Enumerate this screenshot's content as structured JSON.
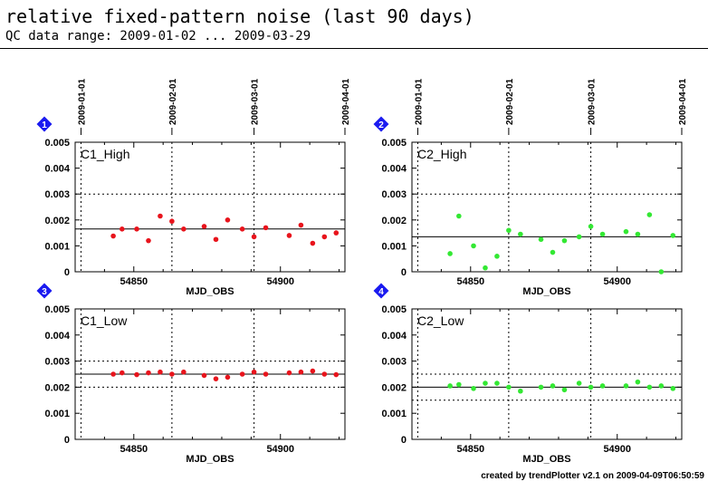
{
  "header": {
    "title": "relative fixed-pattern noise (last 90 days)",
    "subtitle": "QC data range: 2009-01-02 ... 2009-03-29"
  },
  "footer": "created by trendPlotter v2.1 on 2009-04-09T06:50:59",
  "colors": {
    "red": "#e8141c",
    "green": "#33e833",
    "badge": "#1a1af0"
  },
  "chart_data": [
    {
      "type": "scatter",
      "badge": "1",
      "panel_label": "C1_High",
      "xlabel": "MJD_OBS",
      "xlim": [
        54830,
        54922
      ],
      "ylim": [
        0,
        0.005
      ],
      "xticks": [
        54850,
        54900
      ],
      "yticks": [
        "0",
        "0.001",
        "0.002",
        "0.003",
        "0.004",
        "0.005"
      ],
      "date_ticks": [
        {
          "label": "2009-01-01",
          "mjd": 54832
        },
        {
          "label": "2009-02-01",
          "mjd": 54863
        },
        {
          "label": "2009-03-01",
          "mjd": 54891
        },
        {
          "label": "2009-04-01",
          "mjd": 54922
        }
      ],
      "show_xlabel": true,
      "color": "#e8141c",
      "reference_line": 0.00165,
      "threshold_lines": [
        0.003
      ],
      "points": [
        [
          54843,
          0.00138
        ],
        [
          54846,
          0.00165
        ],
        [
          54851,
          0.00165
        ],
        [
          54855,
          0.0012
        ],
        [
          54859,
          0.00215
        ],
        [
          54863,
          0.00195
        ],
        [
          54867,
          0.00165
        ],
        [
          54874,
          0.00175
        ],
        [
          54878,
          0.00125
        ],
        [
          54882,
          0.002
        ],
        [
          54887,
          0.00165
        ],
        [
          54891,
          0.00135
        ],
        [
          54895,
          0.0017
        ],
        [
          54903,
          0.0014
        ],
        [
          54907,
          0.0018
        ],
        [
          54911,
          0.0011
        ],
        [
          54915,
          0.00135
        ],
        [
          54919,
          0.0015
        ]
      ]
    },
    {
      "type": "scatter",
      "badge": "2",
      "panel_label": "C2_High",
      "xlabel": "MJD_OBS",
      "xlim": [
        54830,
        54922
      ],
      "ylim": [
        0,
        0.005
      ],
      "xticks": [
        54850,
        54900
      ],
      "yticks": [
        "0",
        "0.001",
        "0.002",
        "0.003",
        "0.004",
        "0.005"
      ],
      "date_ticks": [
        {
          "label": "2009-01-01",
          "mjd": 54832
        },
        {
          "label": "2009-02-01",
          "mjd": 54863
        },
        {
          "label": "2009-03-01",
          "mjd": 54891
        },
        {
          "label": "2009-04-01",
          "mjd": 54922
        }
      ],
      "show_xlabel": true,
      "color": "#33e833",
      "reference_line": 0.00135,
      "threshold_lines": [
        0.003
      ],
      "points": [
        [
          54843,
          0.0007
        ],
        [
          54846,
          0.00215
        ],
        [
          54851,
          0.001
        ],
        [
          54855,
          0.00015
        ],
        [
          54859,
          0.0006
        ],
        [
          54863,
          0.0016
        ],
        [
          54867,
          0.00145
        ],
        [
          54874,
          0.00125
        ],
        [
          54878,
          0.00075
        ],
        [
          54882,
          0.0012
        ],
        [
          54887,
          0.00135
        ],
        [
          54891,
          0.00175
        ],
        [
          54895,
          0.00145
        ],
        [
          54903,
          0.00155
        ],
        [
          54907,
          0.00145
        ],
        [
          54911,
          0.0022
        ],
        [
          54915,
          0.0
        ],
        [
          54919,
          0.0014
        ]
      ]
    },
    {
      "type": "scatter",
      "badge": "3",
      "panel_label": "C1_Low",
      "xlabel": "MJD_OBS",
      "xlim": [
        54830,
        54922
      ],
      "ylim": [
        0,
        0.005
      ],
      "xticks": [
        54850,
        54900
      ],
      "yticks": [
        "0",
        "0.001",
        "0.002",
        "0.003",
        "0.004",
        "0.005"
      ],
      "date_ticks": [
        {
          "label": "2009-01-01",
          "mjd": 54832
        },
        {
          "label": "2009-02-01",
          "mjd": 54863
        },
        {
          "label": "2009-03-01",
          "mjd": 54891
        },
        {
          "label": "2009-04-01",
          "mjd": 54922
        }
      ],
      "show_xlabel": true,
      "color": "#e8141c",
      "reference_line": 0.0025,
      "threshold_lines": [
        0.003,
        0.002
      ],
      "points": [
        [
          54843,
          0.0025
        ],
        [
          54846,
          0.00255
        ],
        [
          54851,
          0.00248
        ],
        [
          54855,
          0.00255
        ],
        [
          54859,
          0.00258
        ],
        [
          54863,
          0.0025
        ],
        [
          54867,
          0.00258
        ],
        [
          54874,
          0.00245
        ],
        [
          54878,
          0.00232
        ],
        [
          54882,
          0.00238
        ],
        [
          54887,
          0.0025
        ],
        [
          54891,
          0.00258
        ],
        [
          54895,
          0.0025
        ],
        [
          54903,
          0.00255
        ],
        [
          54907,
          0.00258
        ],
        [
          54911,
          0.00262
        ],
        [
          54915,
          0.0025
        ],
        [
          54919,
          0.00248
        ]
      ]
    },
    {
      "type": "scatter",
      "badge": "4",
      "panel_label": "C2_Low",
      "xlabel": "MJD_OBS",
      "xlim": [
        54830,
        54922
      ],
      "ylim": [
        0,
        0.005
      ],
      "xticks": [
        54850,
        54900
      ],
      "yticks": [
        "0",
        "0.001",
        "0.002",
        "0.003",
        "0.004",
        "0.005"
      ],
      "date_ticks": [
        {
          "label": "2009-01-01",
          "mjd": 54832
        },
        {
          "label": "2009-02-01",
          "mjd": 54863
        },
        {
          "label": "2009-03-01",
          "mjd": 54891
        },
        {
          "label": "2009-04-01",
          "mjd": 54922
        }
      ],
      "show_xlabel": true,
      "color": "#33e833",
      "reference_line": 0.002,
      "threshold_lines": [
        0.0025,
        0.0015
      ],
      "points": [
        [
          54843,
          0.00205
        ],
        [
          54846,
          0.0021
        ],
        [
          54851,
          0.00195
        ],
        [
          54855,
          0.00215
        ],
        [
          54859,
          0.00215
        ],
        [
          54863,
          0.002
        ],
        [
          54867,
          0.00185
        ],
        [
          54874,
          0.002
        ],
        [
          54878,
          0.00205
        ],
        [
          54882,
          0.0019
        ],
        [
          54887,
          0.00215
        ],
        [
          54891,
          0.002
        ],
        [
          54895,
          0.00205
        ],
        [
          54903,
          0.00205
        ],
        [
          54907,
          0.0022
        ],
        [
          54911,
          0.002
        ],
        [
          54915,
          0.00205
        ],
        [
          54919,
          0.00195
        ]
      ]
    }
  ]
}
